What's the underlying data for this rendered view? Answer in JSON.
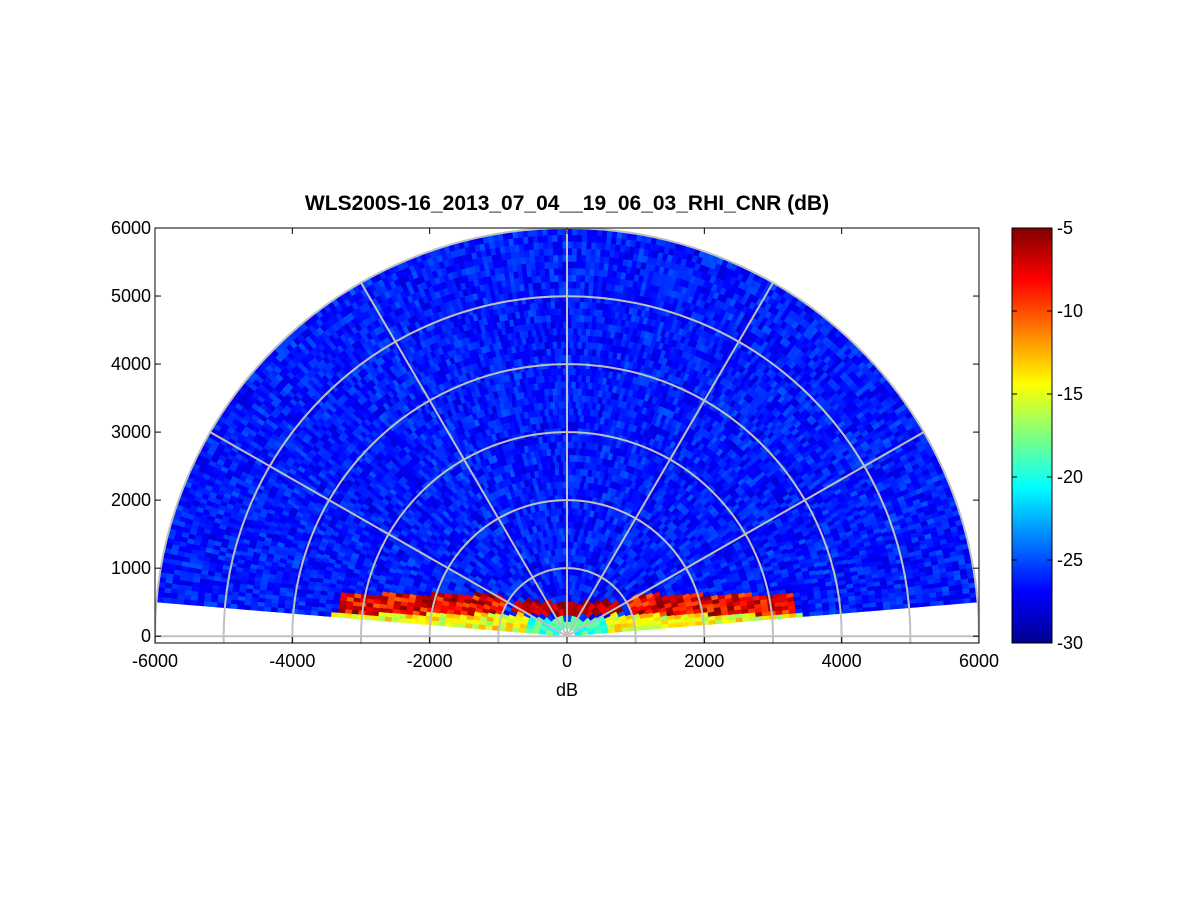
{
  "chart_data": {
    "type": "heatmap",
    "subtype": "polar-rhi",
    "title": "WLS200S-16_2013_07_04__19_06_03_RHI_CNR (dB)",
    "xlabel": "dB",
    "ylabel": "",
    "xlim": [
      -6000,
      6000
    ],
    "ylim": [
      -100,
      6000
    ],
    "x_ticks": [
      -6000,
      -4000,
      -2000,
      0,
      2000,
      4000,
      6000
    ],
    "x_tick_labels": [
      "-6000",
      "-4000",
      "-2000",
      "0",
      "2000",
      "4000",
      "6000"
    ],
    "y_ticks": [
      0,
      1000,
      2000,
      3000,
      4000,
      5000,
      6000
    ],
    "y_tick_labels": [
      "0",
      "1000",
      "2000",
      "3000",
      "4000",
      "5000",
      "6000"
    ],
    "range_rings": [
      1000,
      2000,
      3000,
      4000,
      5000,
      6000
    ],
    "spokes_deg": [
      0,
      30,
      60,
      90,
      120,
      150,
      180
    ],
    "grid": true,
    "colormap": "jet",
    "colorbar": {
      "min": -30,
      "max": -5,
      "ticks": [
        -30,
        -25,
        -20,
        -15,
        -10,
        -5
      ],
      "tick_labels": [
        "-30",
        "-25",
        "-20",
        "-15",
        "-10",
        "-5"
      ],
      "placement": "right"
    },
    "scan_elevation_deg": [
      4.8,
      175.2
    ],
    "range_max": 6000,
    "description_of_field": {
      "far_field": "mostly -27 to -25 dB",
      "near_ground_band": "-15 to -5 dB within 1000-4000 m horizontal, below ~700 m height"
    }
  }
}
